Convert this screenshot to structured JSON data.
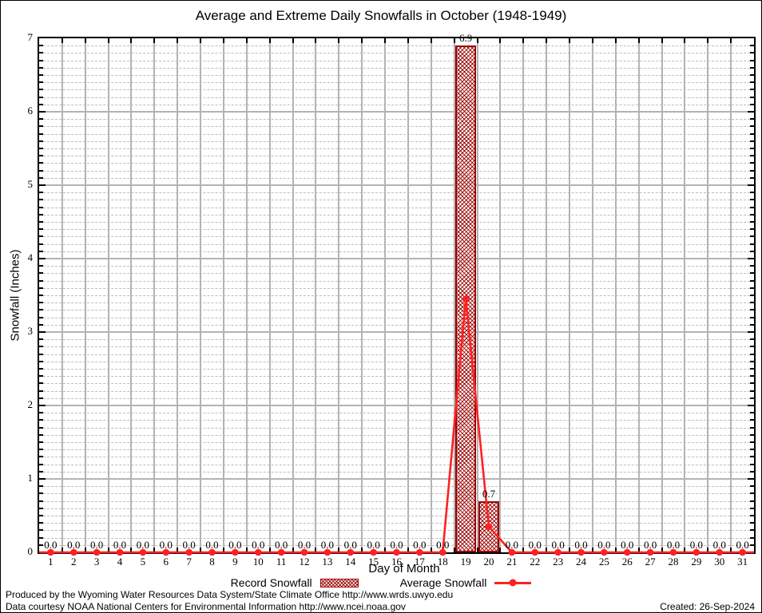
{
  "chart_data": {
    "type": "bar",
    "title": "Average and Extreme Daily Snowfalls in October (1948-1949)",
    "xlabel": "Day of Month",
    "ylabel": "Snowfall (Inches)",
    "ylim": [
      0,
      7
    ],
    "y_major_step": 1,
    "y_minor_step": 0.1,
    "grid": true,
    "legend_position": "bottom",
    "categories": [
      1,
      2,
      3,
      4,
      5,
      6,
      7,
      8,
      9,
      10,
      11,
      12,
      13,
      14,
      15,
      16,
      17,
      18,
      19,
      20,
      21,
      22,
      23,
      24,
      25,
      26,
      27,
      28,
      29,
      30,
      31
    ],
    "series": [
      {
        "name": "Record Snowfall",
        "type": "bar",
        "color": "#990000",
        "values": [
          0,
          0,
          0,
          0,
          0,
          0,
          0,
          0,
          0,
          0,
          0,
          0,
          0,
          0,
          0,
          0,
          0,
          0,
          6.9,
          0.7,
          0,
          0,
          0,
          0,
          0,
          0,
          0,
          0,
          0,
          0,
          0
        ],
        "value_labels": [
          "0.0",
          "0.0",
          "0.0",
          "0.0",
          "0.0",
          "0.0",
          "0.0",
          "0.0",
          "0.0",
          "0.0",
          "0.0",
          "0.0",
          "0.0",
          "0.0",
          "0.0",
          "0.0",
          "0.0",
          "0.0",
          "6.9",
          "0.7",
          "0.0",
          "0.0",
          "0.0",
          "0.0",
          "0.0",
          "0.0",
          "0.0",
          "0.0",
          "0.0",
          "0.0",
          "0.0"
        ]
      },
      {
        "name": "Average Snowfall",
        "type": "line",
        "color": "#ff2121",
        "values": [
          0,
          0,
          0,
          0,
          0,
          0,
          0,
          0,
          0,
          0,
          0,
          0,
          0,
          0,
          0,
          0,
          0,
          0,
          3.45,
          0.35,
          0,
          0,
          0,
          0,
          0,
          0,
          0,
          0,
          0,
          0,
          0
        ]
      }
    ]
  },
  "colors": {
    "bar_border": "#990000",
    "bar_hatch": "#990000",
    "line": "#ff2121",
    "grid_major": "#b3b3b3",
    "grid_minor": "#bdbdbd",
    "frame": "#000000"
  },
  "footer": {
    "line1": "Produced by the Wyoming Water Resources Data System/State Climate Office http://www.wrds.uwyo.edu",
    "line2": "Data courtesy NOAA National Centers for Environmental Information http://www.ncei.noaa.gov",
    "created": "Created: 26-Sep-2024"
  }
}
